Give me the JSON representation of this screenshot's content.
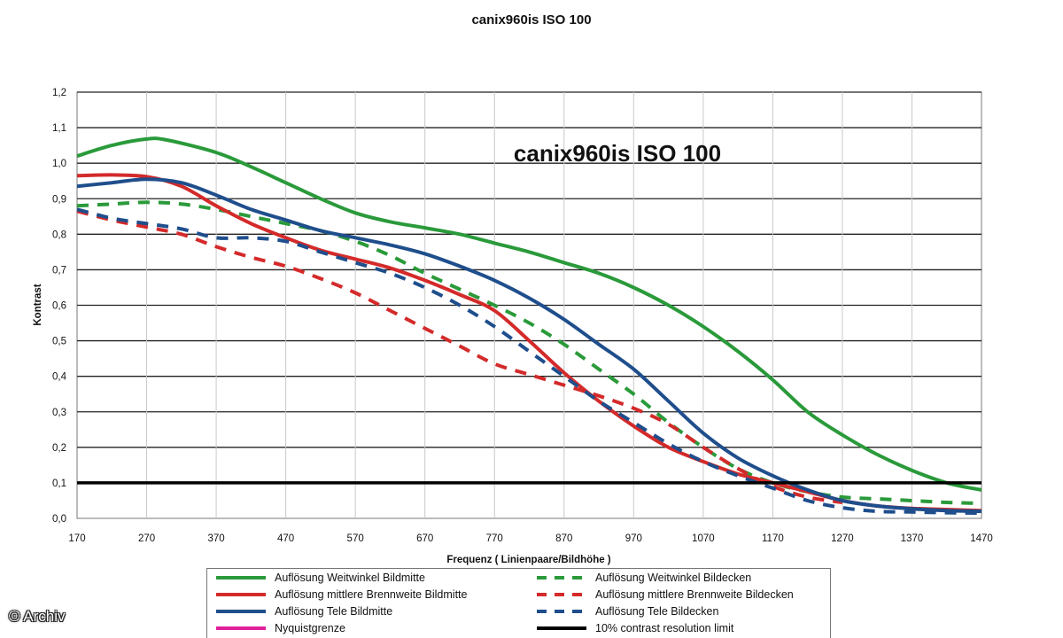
{
  "page": {
    "title": "canix960is ISO 100",
    "copyright": "© Archiv"
  },
  "chart_data": {
    "type": "line",
    "title": "canix960is ISO 100",
    "inset_title": "canix960is ISO 100",
    "xlabel": "Frequenz ( Linienpaare/Bildhöhe )",
    "ylabel": "Kontrast",
    "xlim": [
      170,
      1470
    ],
    "ylim": [
      0,
      1.2
    ],
    "x_ticks": [
      "170",
      "270",
      "370",
      "470",
      "570",
      "670",
      "770",
      "870",
      "970",
      "1070",
      "1170",
      "1270",
      "1370",
      "1470"
    ],
    "y_ticks": [
      "0,0",
      "0,1",
      "0,2",
      "0,3",
      "0,4",
      "0,5",
      "0,6",
      "0,7",
      "0,8",
      "0,9",
      "1,0",
      "1,1",
      "1,2"
    ],
    "grid": "horizontal",
    "legend_position": "bottom",
    "series": [
      {
        "name": "Auflösung Weitwinkel Bildmitte",
        "color": "#2a9a3a",
        "dash": "solid",
        "x": [
          170,
          220,
          270,
          300,
          370,
          420,
          470,
          520,
          570,
          620,
          670,
          720,
          770,
          820,
          870,
          920,
          970,
          1020,
          1070,
          1120,
          1170,
          1220,
          1270,
          1320,
          1370,
          1420,
          1470
        ],
        "y": [
          1.02,
          1.05,
          1.068,
          1.065,
          1.03,
          0.99,
          0.945,
          0.9,
          0.86,
          0.835,
          0.818,
          0.8,
          0.775,
          0.75,
          0.72,
          0.69,
          0.65,
          0.6,
          0.54,
          0.47,
          0.39,
          0.3,
          0.235,
          0.18,
          0.135,
          0.1,
          0.08
        ]
      },
      {
        "name": "Auflösung Weitwinkel Bildecken",
        "color": "#2a9a3a",
        "dash": "dashed",
        "x": [
          170,
          220,
          270,
          320,
          370,
          420,
          470,
          520,
          570,
          620,
          670,
          720,
          770,
          820,
          870,
          920,
          970,
          1020,
          1070,
          1120,
          1170,
          1220,
          1270,
          1320,
          1370,
          1420,
          1470
        ],
        "y": [
          0.88,
          0.885,
          0.89,
          0.885,
          0.87,
          0.85,
          0.83,
          0.81,
          0.78,
          0.74,
          0.69,
          0.645,
          0.6,
          0.55,
          0.49,
          0.42,
          0.35,
          0.27,
          0.2,
          0.14,
          0.1,
          0.075,
          0.06,
          0.055,
          0.05,
          0.045,
          0.042
        ]
      },
      {
        "name": "Auflösung mittlere Brennweite Bildmitte",
        "color": "#d42a2a",
        "dash": "solid",
        "x": [
          170,
          220,
          270,
          320,
          370,
          420,
          470,
          520,
          570,
          620,
          670,
          720,
          770,
          820,
          870,
          920,
          970,
          1020,
          1070,
          1120,
          1170,
          1220,
          1270,
          1320,
          1370,
          1420,
          1470
        ],
        "y": [
          0.965,
          0.967,
          0.962,
          0.935,
          0.88,
          0.83,
          0.79,
          0.755,
          0.73,
          0.705,
          0.67,
          0.63,
          0.585,
          0.5,
          0.41,
          0.33,
          0.26,
          0.2,
          0.16,
          0.125,
          0.1,
          0.075,
          0.05,
          0.035,
          0.028,
          0.025,
          0.022
        ]
      },
      {
        "name": "Auflösung mittlere Brennweite Bildecken",
        "color": "#d42a2a",
        "dash": "dashed",
        "x": [
          170,
          220,
          270,
          320,
          370,
          420,
          470,
          520,
          570,
          620,
          670,
          720,
          770,
          820,
          870,
          920,
          970,
          1020,
          1070,
          1120,
          1170,
          1220,
          1270
        ],
        "y": [
          0.865,
          0.84,
          0.82,
          0.8,
          0.765,
          0.735,
          0.71,
          0.675,
          0.635,
          0.585,
          0.535,
          0.485,
          0.435,
          0.405,
          0.375,
          0.345,
          0.31,
          0.265,
          0.2,
          0.14,
          0.09,
          0.06,
          0.045
        ]
      },
      {
        "name": "Auflösung Tele Bildmitte",
        "color": "#1f4e8c",
        "dash": "solid",
        "x": [
          170,
          220,
          270,
          320,
          370,
          420,
          470,
          520,
          570,
          620,
          670,
          720,
          770,
          820,
          870,
          920,
          970,
          1020,
          1070,
          1120,
          1170,
          1220,
          1270,
          1320,
          1370,
          1420,
          1470
        ],
        "y": [
          0.935,
          0.945,
          0.955,
          0.945,
          0.91,
          0.87,
          0.84,
          0.81,
          0.79,
          0.77,
          0.745,
          0.71,
          0.67,
          0.62,
          0.56,
          0.49,
          0.42,
          0.33,
          0.24,
          0.17,
          0.12,
          0.08,
          0.05,
          0.035,
          0.027,
          0.022,
          0.02
        ]
      },
      {
        "name": "Auflösung Tele Bildecken",
        "color": "#1f4e8c",
        "dash": "dashed",
        "x": [
          170,
          220,
          270,
          320,
          370,
          420,
          470,
          520,
          570,
          620,
          670,
          720,
          770,
          820,
          870,
          920,
          970,
          1020,
          1070,
          1120,
          1170,
          1220,
          1270,
          1320,
          1370,
          1420,
          1470
        ],
        "y": [
          0.87,
          0.845,
          0.83,
          0.815,
          0.79,
          0.79,
          0.78,
          0.75,
          0.72,
          0.69,
          0.65,
          0.6,
          0.54,
          0.47,
          0.4,
          0.33,
          0.27,
          0.21,
          0.16,
          0.12,
          0.085,
          0.05,
          0.03,
          0.02,
          0.018,
          0.016,
          0.015
        ]
      },
      {
        "name": "Nyquistgrenze",
        "color": "#e0209a",
        "dash": "solid",
        "x": [],
        "y": []
      },
      {
        "name": "10% contrast resolution limit",
        "color": "#000000",
        "dash": "solid",
        "x": [
          170,
          1470
        ],
        "y": [
          0.1,
          0.1
        ]
      }
    ]
  },
  "legend": {
    "items": [
      {
        "label": "Auflösung Weitwinkel Bildmitte",
        "color": "#2a9a3a",
        "dash": "solid"
      },
      {
        "label": "Auflösung Weitwinkel Bildecken",
        "color": "#2a9a3a",
        "dash": "dashed"
      },
      {
        "label": "Auflösung mittlere Brennweite Bildmitte",
        "color": "#d42a2a",
        "dash": "solid"
      },
      {
        "label": "Auflösung mittlere Brennweite Bildecken",
        "color": "#d42a2a",
        "dash": "dashed"
      },
      {
        "label": "Auflösung Tele Bildmitte",
        "color": "#1f4e8c",
        "dash": "solid"
      },
      {
        "label": "Auflösung Tele Bildecken",
        "color": "#1f4e8c",
        "dash": "dashed"
      },
      {
        "label": "Nyquistgrenze",
        "color": "#e0209a",
        "dash": "solid"
      },
      {
        "label": "10% contrast resolution limit",
        "color": "#000000",
        "dash": "solid"
      }
    ]
  }
}
